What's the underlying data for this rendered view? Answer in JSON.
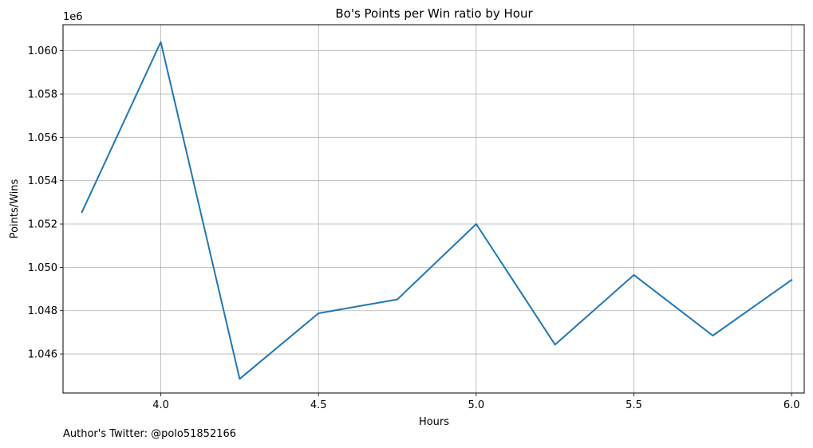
{
  "chart_data": {
    "type": "line",
    "title": "Bo's Points per Win ratio by Hour",
    "xlabel": "Hours",
    "ylabel": "Points/Wins",
    "y_offset_label": "1e6",
    "xlim": [
      3.69,
      6.04
    ],
    "ylim": [
      1044.2,
      1061.2
    ],
    "y_scale_note": "values in thousands; axis multiplier 1e6 shown as printed, tick labels formatted to 3 decimals of millions",
    "x_ticks": [
      4.0,
      4.5,
      5.0,
      5.5,
      6.0
    ],
    "x_tick_labels": [
      "4.0",
      "4.5",
      "5.0",
      "5.5",
      "6.0"
    ],
    "y_ticks": [
      1046,
      1048,
      1050,
      1052,
      1054,
      1056,
      1058,
      1060
    ],
    "y_tick_labels": [
      "1.046",
      "1.048",
      "1.050",
      "1.052",
      "1.054",
      "1.056",
      "1.058",
      "1.060"
    ],
    "grid": true,
    "series": [
      {
        "color": "#1f77b4",
        "x": [
          3.75,
          4.0,
          4.25,
          4.5,
          4.75,
          5.0,
          5.25,
          5.5,
          5.75,
          6.0
        ],
        "y": [
          1052.55,
          1060.4,
          1044.85,
          1047.88,
          1048.52,
          1052.0,
          1046.43,
          1049.65,
          1046.85,
          1049.42
        ]
      }
    ]
  },
  "footer": {
    "credit": "Author's Twitter: @polo51852166"
  }
}
